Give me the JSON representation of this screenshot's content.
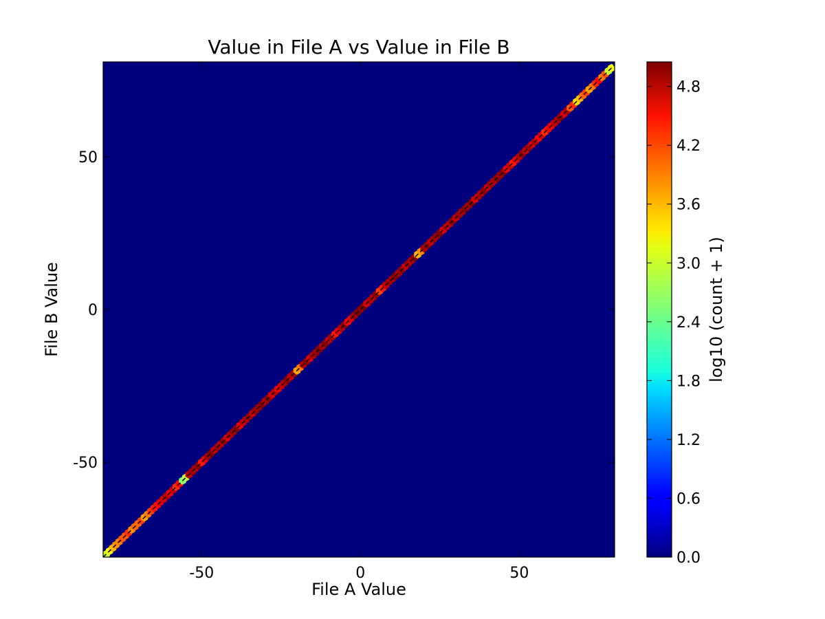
{
  "chart_data": {
    "type": "heatmap",
    "subtype": "hexbin",
    "title": "Value in File A vs Value in File B",
    "xlabel": "File A Value",
    "ylabel": "File B Value",
    "xlim": [
      -81,
      80
    ],
    "ylim": [
      -81,
      81
    ],
    "xticks": [
      -50,
      0,
      50
    ],
    "yticks": [
      -50,
      0,
      50
    ],
    "grid": false,
    "background_color": "#00007f",
    "reference_line": {
      "from": [
        -81,
        -81
      ],
      "to": [
        80,
        80
      ],
      "color": "#000000",
      "style": "dashed"
    },
    "colorbar": {
      "label": "log10 (count + 1)",
      "range": [
        0,
        5.05
      ],
      "ticks": [
        0.0,
        0.6,
        1.2,
        1.8,
        2.4,
        3.0,
        3.6,
        4.2,
        4.8
      ],
      "colormap": "jet"
    },
    "diagonal_bins": [
      {
        "x": -80,
        "c": 2.9
      },
      {
        "x": -78,
        "c": 3.5
      },
      {
        "x": -76,
        "c": 3.8
      },
      {
        "x": -74,
        "c": 4.0
      },
      {
        "x": -72,
        "c": 3.7
      },
      {
        "x": -70,
        "c": 3.9
      },
      {
        "x": -68,
        "c": 3.6
      },
      {
        "x": -66,
        "c": 4.1
      },
      {
        "x": -64,
        "c": 4.4
      },
      {
        "x": -62,
        "c": 4.6
      },
      {
        "x": -60,
        "c": 4.5
      },
      {
        "x": -58,
        "c": 4.2
      },
      {
        "x": -56,
        "c": 2.6
      },
      {
        "x": -54,
        "c": 4.7
      },
      {
        "x": -52,
        "c": 4.8
      },
      {
        "x": -50,
        "c": 4.3
      },
      {
        "x": -48,
        "c": 4.9
      },
      {
        "x": -46,
        "c": 4.7
      },
      {
        "x": -44,
        "c": 4.8
      },
      {
        "x": -42,
        "c": 4.6
      },
      {
        "x": -40,
        "c": 4.9
      },
      {
        "x": -38,
        "c": 4.5
      },
      {
        "x": -36,
        "c": 4.8
      },
      {
        "x": -34,
        "c": 4.7
      },
      {
        "x": -32,
        "c": 4.9
      },
      {
        "x": -30,
        "c": 4.8
      },
      {
        "x": -28,
        "c": 4.6
      },
      {
        "x": -26,
        "c": 4.5
      },
      {
        "x": -24,
        "c": 4.8
      },
      {
        "x": -22,
        "c": 4.7
      },
      {
        "x": -20,
        "c": 3.6
      },
      {
        "x": -18,
        "c": 4.8
      },
      {
        "x": -16,
        "c": 4.6
      },
      {
        "x": -14,
        "c": 4.9
      },
      {
        "x": -12,
        "c": 4.8
      },
      {
        "x": -10,
        "c": 4.7
      },
      {
        "x": -8,
        "c": 4.3
      },
      {
        "x": -6,
        "c": 4.8
      },
      {
        "x": -4,
        "c": 4.4
      },
      {
        "x": -2,
        "c": 4.9
      },
      {
        "x": 0,
        "c": 5.0
      },
      {
        "x": 2,
        "c": 4.6
      },
      {
        "x": 4,
        "c": 4.8
      },
      {
        "x": 6,
        "c": 4.1
      },
      {
        "x": 8,
        "c": 4.7
      },
      {
        "x": 10,
        "c": 4.9
      },
      {
        "x": 12,
        "c": 4.8
      },
      {
        "x": 14,
        "c": 4.7
      },
      {
        "x": 16,
        "c": 4.8
      },
      {
        "x": 18,
        "c": 3.5
      },
      {
        "x": 20,
        "c": 4.8
      },
      {
        "x": 22,
        "c": 4.7
      },
      {
        "x": 24,
        "c": 4.9
      },
      {
        "x": 26,
        "c": 4.6
      },
      {
        "x": 28,
        "c": 4.8
      },
      {
        "x": 30,
        "c": 4.7
      },
      {
        "x": 32,
        "c": 4.8
      },
      {
        "x": 34,
        "c": 4.9
      },
      {
        "x": 36,
        "c": 4.6
      },
      {
        "x": 38,
        "c": 4.8
      },
      {
        "x": 40,
        "c": 4.7
      },
      {
        "x": 42,
        "c": 4.8
      },
      {
        "x": 44,
        "c": 4.9
      },
      {
        "x": 46,
        "c": 4.5
      },
      {
        "x": 48,
        "c": 4.3
      },
      {
        "x": 50,
        "c": 4.8
      },
      {
        "x": 52,
        "c": 4.7
      },
      {
        "x": 54,
        "c": 4.6
      },
      {
        "x": 56,
        "c": 4.4
      },
      {
        "x": 58,
        "c": 4.2
      },
      {
        "x": 60,
        "c": 4.5
      },
      {
        "x": 62,
        "c": 4.8
      },
      {
        "x": 64,
        "c": 4.6
      },
      {
        "x": 66,
        "c": 4.0
      },
      {
        "x": 68,
        "c": 3.3
      },
      {
        "x": 70,
        "c": 3.9
      },
      {
        "x": 72,
        "c": 3.6
      },
      {
        "x": 74,
        "c": 4.2
      },
      {
        "x": 76,
        "c": 3.8
      },
      {
        "x": 78,
        "c": 2.9
      }
    ]
  }
}
